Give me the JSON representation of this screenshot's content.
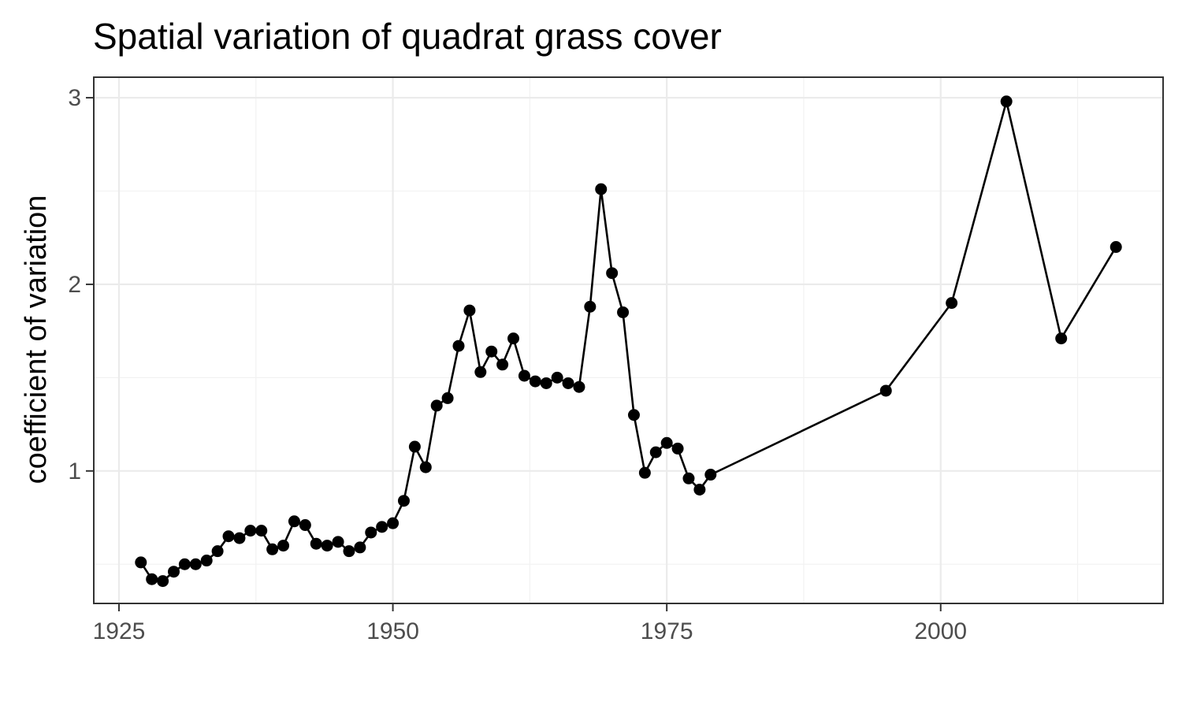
{
  "chart_data": {
    "type": "line",
    "title": "Spatial variation of quadrat grass cover",
    "xlabel": "",
    "ylabel": "coefficient of variation",
    "xlim": [
      1922.7,
      2020.3
    ],
    "ylim": [
      0.29,
      3.11
    ],
    "xticks": [
      1925,
      1950,
      1975,
      2000
    ],
    "yticks": [
      1,
      2,
      3
    ],
    "grid": true,
    "legend": "none",
    "colors": {
      "series": "#000000",
      "grid": "#ebebeb",
      "border": "#333333",
      "tick_label": "#4d4d4d"
    },
    "series": [
      {
        "x": [
          1927,
          1928,
          1929,
          1930,
          1931,
          1932,
          1933,
          1934,
          1935,
          1936,
          1937,
          1938,
          1939,
          1940,
          1941,
          1942,
          1943,
          1944,
          1945,
          1946,
          1947,
          1948,
          1949,
          1950,
          1951,
          1952,
          1953,
          1954,
          1955,
          1956,
          1957,
          1958,
          1959,
          1960,
          1961,
          1962,
          1963,
          1964,
          1965,
          1966,
          1967,
          1968,
          1969,
          1970,
          1971,
          1972,
          1973,
          1974,
          1975,
          1976,
          1977,
          1978,
          1979,
          1995,
          2001,
          2006,
          2011,
          2016
        ],
        "y": [
          0.51,
          0.42,
          0.41,
          0.46,
          0.5,
          0.5,
          0.52,
          0.57,
          0.65,
          0.64,
          0.68,
          0.68,
          0.58,
          0.6,
          0.73,
          0.71,
          0.61,
          0.6,
          0.62,
          0.57,
          0.59,
          0.67,
          0.7,
          0.72,
          0.84,
          1.13,
          1.02,
          1.35,
          1.39,
          1.67,
          1.86,
          1.53,
          1.64,
          1.57,
          1.71,
          1.51,
          1.48,
          1.47,
          1.5,
          1.47,
          1.45,
          1.88,
          2.51,
          2.06,
          1.85,
          1.3,
          0.99,
          1.1,
          1.15,
          1.12,
          0.96,
          0.9,
          0.98,
          1.43,
          1.9,
          2.98,
          1.71,
          2.2
        ]
      }
    ]
  }
}
